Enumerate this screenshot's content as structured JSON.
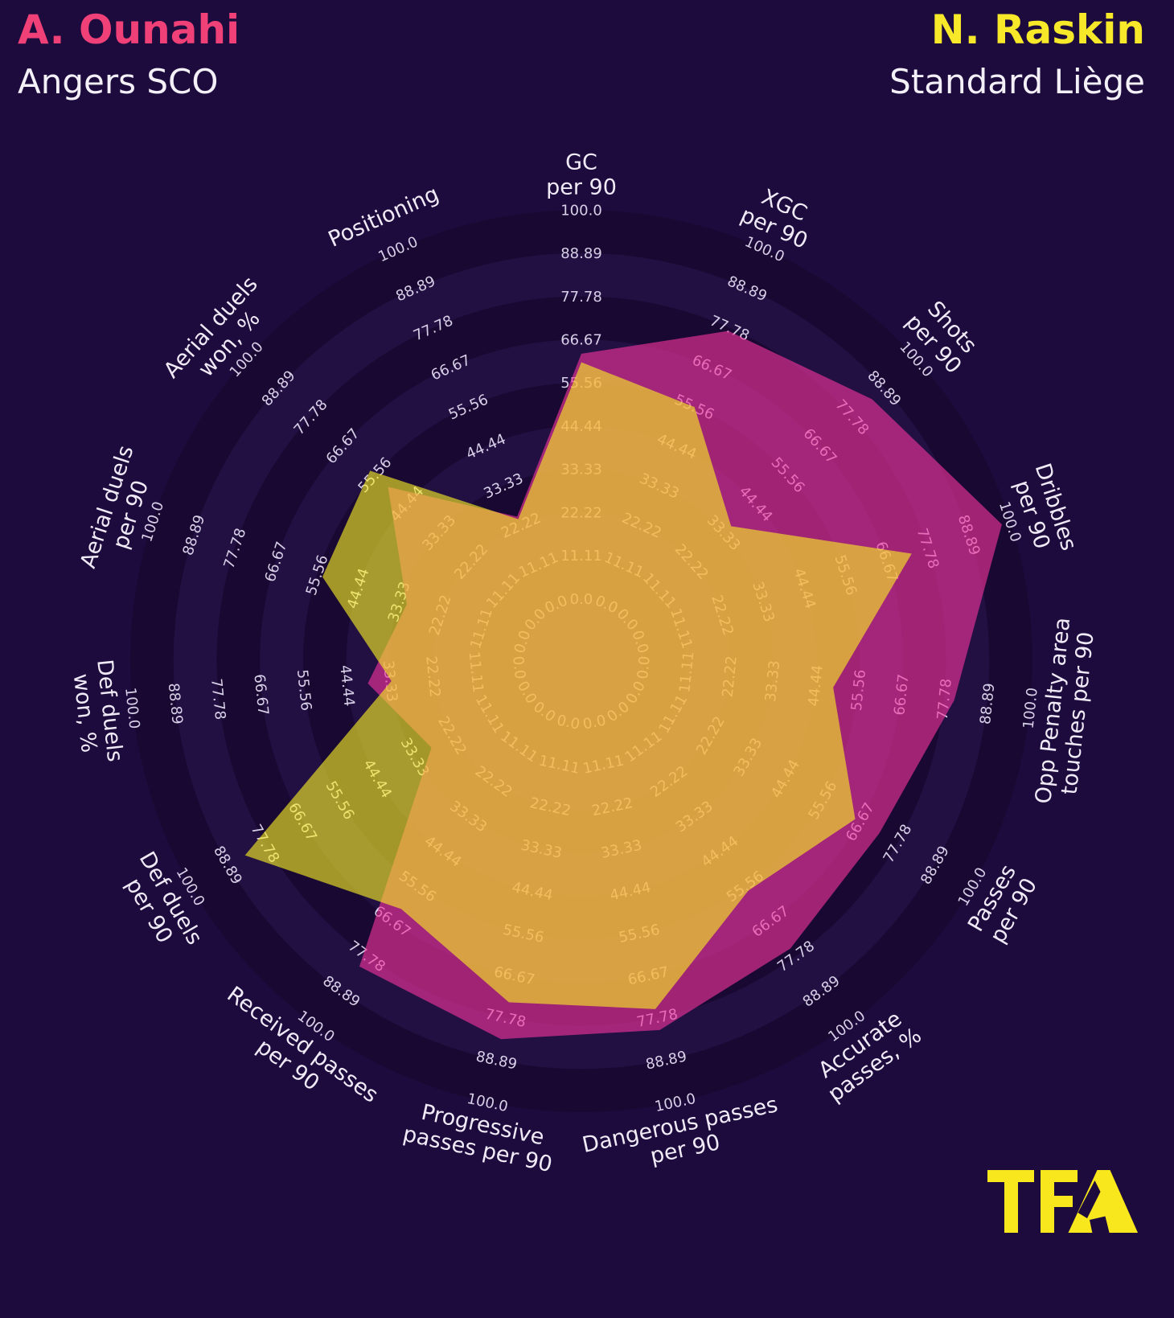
{
  "header": {
    "player1": {
      "name": "A. Ounahi",
      "team": "Angers SCO",
      "name_color": "#f04078",
      "team_color": "#f3f0f7"
    },
    "player2": {
      "name": "N. Raskin",
      "team": "Standard Liège",
      "name_color": "#f7e929",
      "team_color": "#f3f0f7"
    }
  },
  "logo": {
    "text": "TFA",
    "color": "#f8e71c"
  },
  "chart_data": {
    "type": "radar",
    "title": "",
    "params": [
      {
        "label": "GC per 90",
        "lines": [
          "GC",
          "per 90"
        ]
      },
      {
        "label": "XGC per 90",
        "lines": [
          "XGC",
          "per 90"
        ]
      },
      {
        "label": "Shots per 90",
        "lines": [
          "Shots",
          "per 90"
        ]
      },
      {
        "label": "Dribbles per 90",
        "lines": [
          "Dribbles",
          "per 90"
        ]
      },
      {
        "label": "Opp Penalty area touches per 90",
        "lines": [
          "Opp Penalty area",
          "touches per 90"
        ]
      },
      {
        "label": "Passes per 90",
        "lines": [
          "Passes",
          "per 90"
        ]
      },
      {
        "label": "Accurate passes, %",
        "lines": [
          "Accurate",
          "passes, %"
        ]
      },
      {
        "label": "Dangerous passes per 90",
        "lines": [
          "Dangerous passes",
          "per 90"
        ]
      },
      {
        "label": "Progressive passes per 90",
        "lines": [
          "Progressive",
          "passes per 90"
        ]
      },
      {
        "label": "Received passes per 90",
        "lines": [
          "Received passes",
          "per 90"
        ]
      },
      {
        "label": "Def duels per 90",
        "lines": [
          "Def duels",
          "per 90"
        ]
      },
      {
        "label": "Def duels won, %",
        "lines": [
          "Def duels",
          "won, %"
        ]
      },
      {
        "label": "Aerial duels per 90",
        "lines": [
          "Aerial duels",
          "per 90"
        ]
      },
      {
        "label": "Aerial duels won, %",
        "lines": [
          "Aerial duels",
          "won, %"
        ]
      },
      {
        "label": "Positioning",
        "lines": [
          "Positioning"
        ]
      }
    ],
    "tick_labels": [
      "0.0",
      "11.11",
      "22.22",
      "33.33",
      "44.44",
      "55.56",
      "66.67",
      "77.78",
      "88.89",
      "100.0"
    ],
    "range": [
      0,
      100
    ],
    "grid": {
      "rings": 9,
      "band_color_dark": "#190832",
      "band_color_light": "#221042",
      "background": "#1e0b3e"
    },
    "tick_label_color": "#d7cfe7",
    "param_label_color": "#efeaf6",
    "series": [
      {
        "name": "A. Ounahi",
        "color": "#ef349c",
        "fill_opacity": 0.63,
        "values": [
          63.0,
          76.9,
          84.6,
          97.7,
          80.4,
          72.5,
          75.4,
          81.0,
          83.4,
          81.1,
          28.5,
          39.2,
          31.2,
          50.9,
          24.6
        ]
      },
      {
        "name": "N. Raskin",
        "color": "#f9ef23",
        "fill_opacity": 0.62,
        "values": [
          60.8,
          55.5,
          35.8,
          73.3,
          49.1,
          65.3,
          57.0,
          75.5,
          73.7,
          62.8,
          83.9,
          33.1,
          54.0,
          57.1,
          23.9
        ]
      }
    ]
  }
}
